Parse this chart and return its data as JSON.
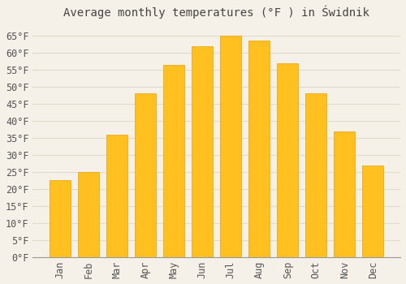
{
  "title": "Average monthly temperatures (°F ) in Świdnik",
  "months": [
    "Jan",
    "Feb",
    "Mar",
    "Apr",
    "May",
    "Jun",
    "Jul",
    "Aug",
    "Sep",
    "Oct",
    "Nov",
    "Dec"
  ],
  "values": [
    22.5,
    25.0,
    36.0,
    48.0,
    56.5,
    62.0,
    65.0,
    63.5,
    57.0,
    48.0,
    37.0,
    27.0
  ],
  "bar_color": "#FFC020",
  "bar_edge_color": "#E8A000",
  "background_color": "#F5F0E8",
  "plot_bg_color": "#F5F0E8",
  "grid_color": "#DDDDCC",
  "title_color": "#444444",
  "tick_label_color": "#555555",
  "ylim": [
    0,
    68
  ],
  "ytick_values": [
    0,
    5,
    10,
    15,
    20,
    25,
    30,
    35,
    40,
    45,
    50,
    55,
    60,
    65
  ],
  "title_fontsize": 10,
  "tick_fontsize": 8.5,
  "font_family": "monospace"
}
